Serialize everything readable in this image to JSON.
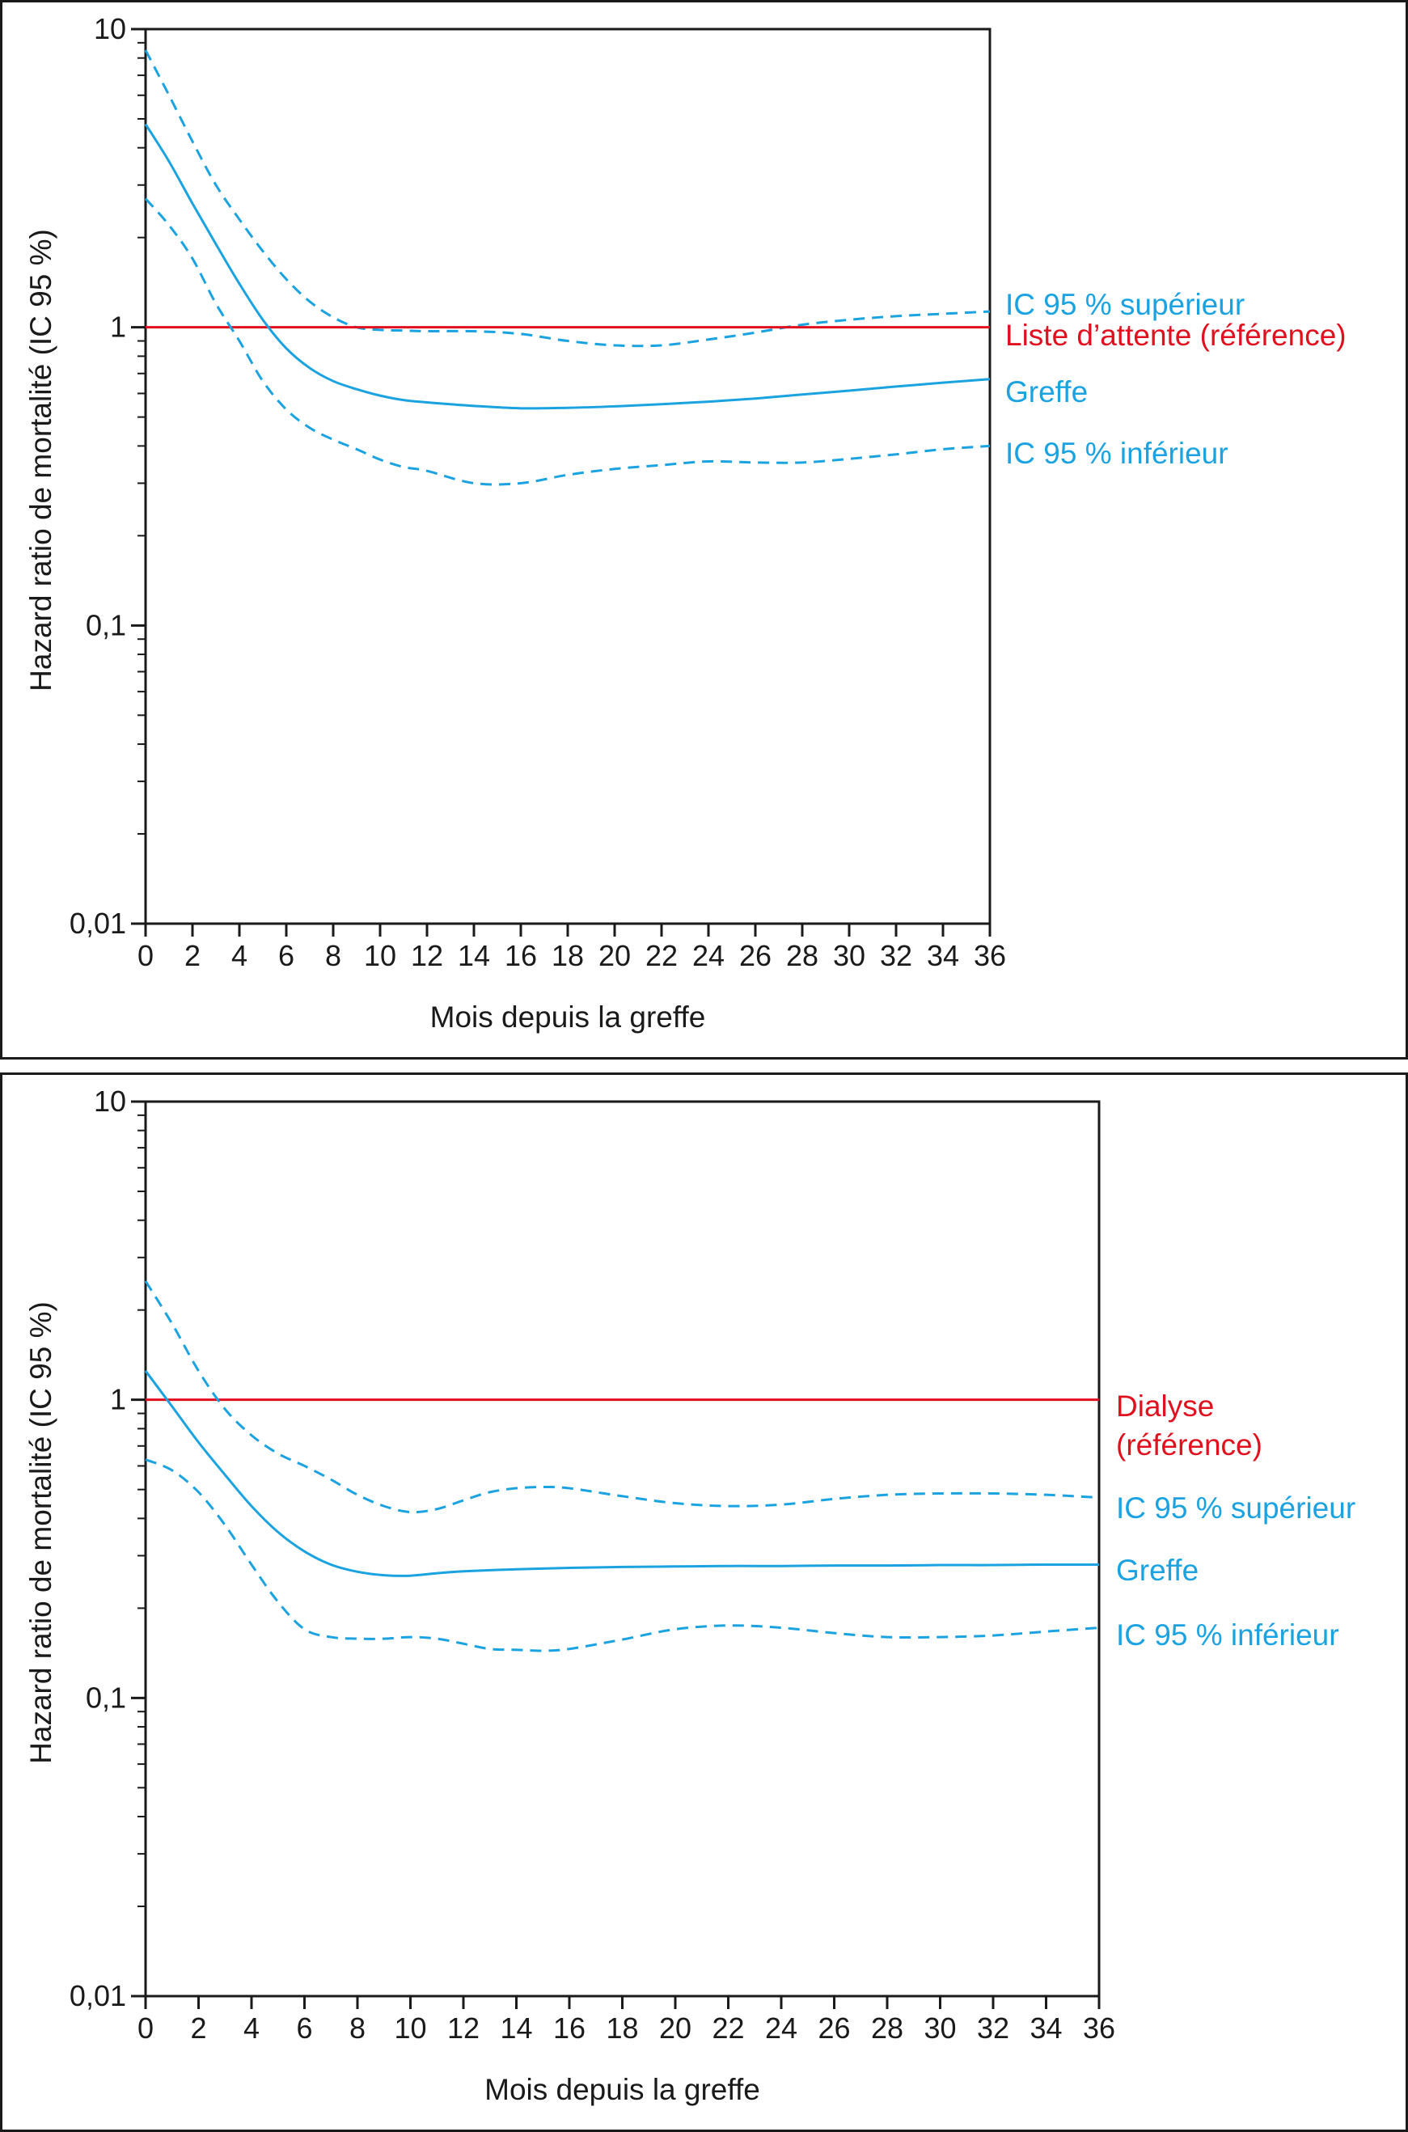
{
  "colors": {
    "ci": "#1aa3e0",
    "reference": "#e0101e",
    "axis": "#1a1a1a",
    "frame": "#1a1a1a"
  },
  "chart_data": [
    {
      "type": "line",
      "xlabel": "Mois depuis la greffe",
      "ylabel": "Hazard ratio de mortalité (IC 95 %)",
      "y_scale": "log",
      "xlim": [
        0,
        36
      ],
      "ylim": [
        0.01,
        10
      ],
      "x_ticks": [
        0,
        2,
        4,
        6,
        8,
        10,
        12,
        14,
        16,
        18,
        20,
        22,
        24,
        26,
        28,
        30,
        32,
        34,
        36
      ],
      "x_tick_labels": [
        "0",
        "2",
        "4",
        "6",
        "8",
        "10",
        "12",
        "14",
        "16",
        "18",
        "20",
        "22",
        "24",
        "26",
        "28",
        "30",
        "32",
        "34",
        "36"
      ],
      "y_ticks": [
        0.01,
        0.1,
        1,
        10
      ],
      "y_tick_labels": [
        "0,01",
        "0,1",
        "1",
        "10"
      ],
      "grid": false,
      "legend_placement": "right",
      "series": [
        {
          "name": "IC 95 % supérieur",
          "style": "dashed",
          "color": "#1aa3e0",
          "x": [
            0,
            1,
            2,
            3,
            4,
            5,
            6,
            7,
            8,
            9,
            10,
            11,
            12,
            14,
            16,
            18,
            20,
            22,
            24,
            26,
            28,
            30,
            32,
            34,
            36
          ],
          "y": [
            8.5,
            6.0,
            4.2,
            3.0,
            2.3,
            1.8,
            1.45,
            1.22,
            1.08,
            1.0,
            0.98,
            0.975,
            0.97,
            0.97,
            0.95,
            0.9,
            0.87,
            0.87,
            0.91,
            0.96,
            1.02,
            1.06,
            1.09,
            1.11,
            1.13
          ],
          "legend_label": "IC 95 % supérieur"
        },
        {
          "name": "Liste d’attente (référence)",
          "style": "solid",
          "color": "#e0101e",
          "x": [
            0,
            36
          ],
          "y": [
            1,
            1
          ],
          "legend_label": "Liste d’attente (référence)"
        },
        {
          "name": "Greffe",
          "style": "solid",
          "color": "#1aa3e0",
          "x": [
            0,
            1,
            2,
            3,
            4,
            5,
            6,
            7,
            8,
            9,
            10,
            11,
            12,
            14,
            16,
            18,
            20,
            22,
            24,
            26,
            28,
            30,
            32,
            34,
            36
          ],
          "y": [
            4.8,
            3.6,
            2.6,
            1.9,
            1.4,
            1.06,
            0.85,
            0.73,
            0.66,
            0.62,
            0.59,
            0.57,
            0.56,
            0.545,
            0.535,
            0.537,
            0.543,
            0.552,
            0.563,
            0.577,
            0.595,
            0.613,
            0.633,
            0.652,
            0.67
          ],
          "legend_label": "Greffe"
        },
        {
          "name": "IC 95 % inférieur",
          "style": "dashed",
          "color": "#1aa3e0",
          "x": [
            0,
            1,
            2,
            3,
            4,
            5,
            6,
            7,
            8,
            9,
            10,
            11,
            12,
            14,
            16,
            18,
            20,
            22,
            24,
            26,
            28,
            30,
            32,
            34,
            36
          ],
          "y": [
            2.7,
            2.2,
            1.7,
            1.2,
            0.9,
            0.66,
            0.53,
            0.46,
            0.42,
            0.39,
            0.36,
            0.34,
            0.33,
            0.3,
            0.3,
            0.32,
            0.335,
            0.345,
            0.355,
            0.352,
            0.352,
            0.362,
            0.375,
            0.39,
            0.4
          ],
          "legend_label": "IC 95 % inférieur"
        }
      ]
    },
    {
      "type": "line",
      "xlabel": "Mois depuis la greffe",
      "ylabel": "Hazard ratio de mortalité (IC 95 %)",
      "y_scale": "log",
      "xlim": [
        0,
        36
      ],
      "ylim": [
        0.01,
        10
      ],
      "x_ticks": [
        0,
        2,
        4,
        6,
        8,
        10,
        12,
        14,
        16,
        18,
        20,
        22,
        24,
        26,
        28,
        30,
        32,
        34,
        36
      ],
      "x_tick_labels": [
        "0",
        "2",
        "4",
        "6",
        "8",
        "10",
        "12",
        "14",
        "16",
        "18",
        "20",
        "22",
        "24",
        "26",
        "28",
        "30",
        "32",
        "34",
        "36"
      ],
      "y_ticks": [
        0.01,
        0.1,
        1,
        10
      ],
      "y_tick_labels": [
        "0,01",
        "0,1",
        "1",
        "10"
      ],
      "grid": false,
      "legend_placement": "right",
      "series": [
        {
          "name": "Dialyse (référence)",
          "style": "solid",
          "color": "#e0101e",
          "x": [
            0,
            36
          ],
          "y": [
            1,
            1
          ],
          "legend_label_lines": [
            "Dialyse",
            "(référence)"
          ]
        },
        {
          "name": "IC 95 % supérieur",
          "style": "dashed",
          "color": "#1aa3e0",
          "x": [
            0,
            1,
            2,
            3,
            4,
            5,
            6,
            7,
            8,
            9,
            10,
            11,
            12,
            13,
            14,
            15,
            16,
            18,
            20,
            22,
            24,
            26,
            28,
            30,
            32,
            34,
            36
          ],
          "y": [
            2.5,
            1.8,
            1.25,
            0.93,
            0.76,
            0.66,
            0.6,
            0.54,
            0.48,
            0.44,
            0.42,
            0.43,
            0.46,
            0.49,
            0.505,
            0.51,
            0.505,
            0.475,
            0.45,
            0.44,
            0.445,
            0.465,
            0.48,
            0.485,
            0.485,
            0.48,
            0.47
          ],
          "legend_label": "IC 95 % supérieur"
        },
        {
          "name": "Greffe",
          "style": "solid",
          "color": "#1aa3e0",
          "x": [
            0,
            1,
            2,
            3,
            4,
            5,
            6,
            7,
            8,
            9,
            10,
            11,
            12,
            14,
            16,
            18,
            20,
            22,
            24,
            26,
            28,
            30,
            32,
            34,
            36
          ],
          "y": [
            1.25,
            0.95,
            0.72,
            0.56,
            0.44,
            0.36,
            0.31,
            0.28,
            0.265,
            0.258,
            0.257,
            0.262,
            0.266,
            0.27,
            0.273,
            0.275,
            0.276,
            0.277,
            0.277,
            0.278,
            0.278,
            0.279,
            0.279,
            0.28,
            0.28
          ],
          "legend_label": "Greffe"
        },
        {
          "name": "IC 95 % inférieur",
          "style": "dashed",
          "color": "#1aa3e0",
          "x": [
            0,
            1,
            2,
            3,
            4,
            5,
            6,
            7,
            8,
            9,
            10,
            11,
            12,
            13,
            14,
            15,
            16,
            18,
            20,
            22,
            24,
            26,
            28,
            30,
            32,
            34,
            36
          ],
          "y": [
            0.63,
            0.58,
            0.49,
            0.38,
            0.28,
            0.21,
            0.17,
            0.16,
            0.158,
            0.158,
            0.16,
            0.158,
            0.152,
            0.146,
            0.145,
            0.144,
            0.146,
            0.157,
            0.17,
            0.175,
            0.172,
            0.165,
            0.16,
            0.16,
            0.162,
            0.167,
            0.172
          ],
          "legend_label": "IC 95 % inférieur"
        }
      ]
    }
  ]
}
